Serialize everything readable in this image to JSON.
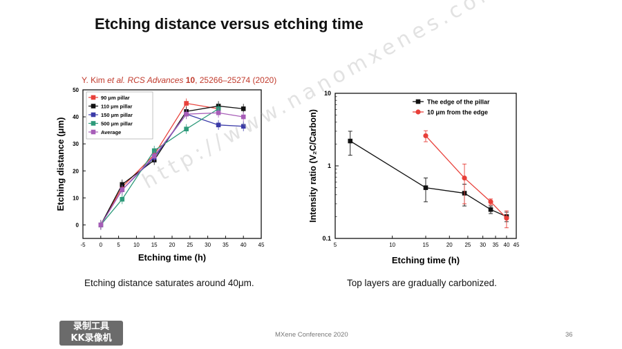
{
  "slide": {
    "title": "Etching distance versus etching time",
    "citation": {
      "authors": "Y. Kim ",
      "etal": "et al.",
      "journal": " RCS Advances ",
      "volume": "10",
      "pages": ", 25266–25274 (2020)"
    },
    "caption_left": "Etching distance saturates around 40μm.",
    "caption_right": "Top layers are gradually carbonized.",
    "footer": "MXene Conference 2020",
    "page_number": "36",
    "watermark": "http://www.nanomxenes.com",
    "recorder_badge": [
      "录制工具",
      "KK录像机"
    ]
  },
  "chart_data": [
    {
      "type": "line",
      "xlabel": "Etching time (h)",
      "ylabel": "Etching distance (μm)",
      "xlim": [
        -5,
        45
      ],
      "ylim": [
        -5,
        50
      ],
      "xticks": [
        -5,
        0,
        5,
        10,
        15,
        20,
        25,
        30,
        35,
        40,
        45
      ],
      "yticks": [
        0,
        10,
        20,
        30,
        40,
        50
      ],
      "legend_position": "top-left",
      "series": [
        {
          "name": "90 μm pillar",
          "color": "#e8403a",
          "marker": "square",
          "x": [
            0,
            6,
            15,
            24,
            33
          ],
          "y": [
            0,
            14,
            26,
            45,
            43
          ]
        },
        {
          "name": "110 μm pillar",
          "color": "#111111",
          "marker": "square",
          "x": [
            0,
            6,
            15,
            24,
            33,
            40
          ],
          "y": [
            0,
            15,
            24,
            42,
            44,
            43
          ]
        },
        {
          "name": "150 μm pillar",
          "color": "#3a3aa8",
          "marker": "square",
          "x": [
            0,
            6,
            15,
            24,
            33,
            40
          ],
          "y": [
            0,
            13,
            25,
            41,
            37,
            36.5
          ]
        },
        {
          "name": "500 μm pillar",
          "color": "#2e9a7a",
          "marker": "square",
          "x": [
            0,
            6,
            15,
            24,
            33
          ],
          "y": [
            0,
            9.5,
            27.5,
            35.5,
            43
          ]
        },
        {
          "name": "Average",
          "color": "#a75db8",
          "marker": "square",
          "x": [
            0,
            6,
            15,
            24,
            33,
            40
          ],
          "y": [
            0,
            13,
            25.5,
            41,
            41.5,
            40
          ]
        }
      ]
    },
    {
      "type": "line",
      "xlabel": "Etching time (h)",
      "ylabel": "Intensity ratio (V₂C/Carbon)",
      "xscale": "log",
      "yscale": "log",
      "xlim": [
        5,
        45
      ],
      "ylim": [
        0.1,
        10
      ],
      "xticks": [
        5,
        10,
        15,
        20,
        25,
        30,
        35,
        40,
        45
      ],
      "yticks": [
        0.1,
        1,
        10
      ],
      "legend_position": "top-right",
      "series": [
        {
          "name": "The edge of the pillar",
          "color": "#111111",
          "marker": "square",
          "x": [
            6,
            15,
            24,
            33,
            40
          ],
          "y": [
            2.2,
            0.5,
            0.42,
            0.25,
            0.2
          ],
          "err": [
            0.8,
            0.18,
            0.14,
            0.03,
            0.03
          ]
        },
        {
          "name": "10 μm from the edge",
          "color": "#e8403a",
          "marker": "circle",
          "x": [
            15,
            24,
            33,
            40
          ],
          "y": [
            2.6,
            0.68,
            0.32,
            0.19
          ],
          "err": [
            0.45,
            0.38,
            0.03,
            0.05
          ]
        }
      ]
    }
  ]
}
